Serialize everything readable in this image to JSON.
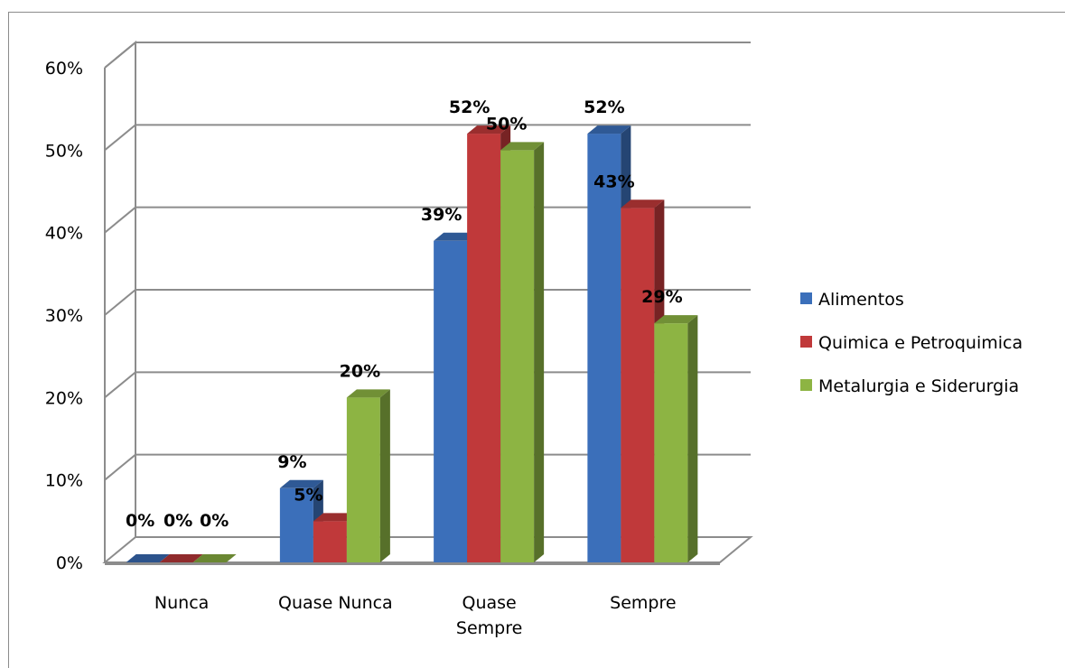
{
  "chart_data": {
    "type": "bar",
    "categories": [
      "Nunca",
      "Quase Nunca",
      "Quase Sempre",
      "Sempre"
    ],
    "series": [
      {
        "name": "Alimentos",
        "values": [
          0,
          9,
          39,
          52
        ],
        "labels": [
          "0%",
          "9%",
          "39%",
          "52%"
        ],
        "color": "#3b6fba"
      },
      {
        "name": "Quimica e Petroquimica",
        "values": [
          0,
          5,
          52,
          43
        ],
        "labels": [
          "0%",
          "5%",
          "52%",
          "43%"
        ],
        "color": "#c0393a"
      },
      {
        "name": "Metalurgia e Siderurgia",
        "values": [
          0,
          20,
          50,
          29
        ],
        "labels": [
          "0%",
          "20%",
          "50%",
          "29%"
        ],
        "color": "#8db443"
      }
    ],
    "ylim": [
      0,
      60
    ],
    "yticks": [
      "0%",
      "10%",
      "20%",
      "30%",
      "40%",
      "50%",
      "60%"
    ],
    "grid": true,
    "legend_position": "right",
    "three_d": true
  }
}
